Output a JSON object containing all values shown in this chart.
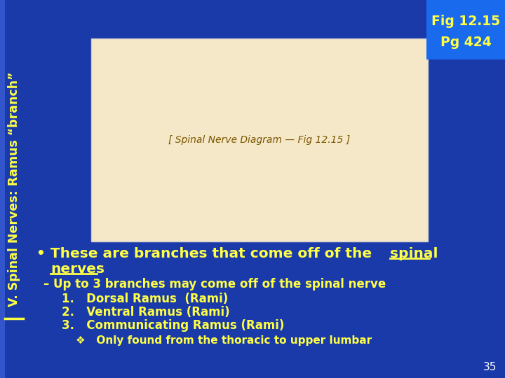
{
  "background_color": "#1a3aaa",
  "title_text": "V. Spinal Nerves: Ramus “branch”",
  "title_color": "#ffff44",
  "fig_ref_line1": "Fig 12.15",
  "fig_ref_line2": "Pg 424",
  "fig_ref_color": "#ffff44",
  "fig_ref_bg": "#1a6aee",
  "bullet_normal": "• These are branches that come off of the ",
  "bullet_bold_ul_1": "spinal",
  "bullet_bold_ul_2": "nerves",
  "bullet_color": "#ffff44",
  "sub_bullet": "– Up to 3 branches may come off of the spinal nerve",
  "sub_bullet_color": "#ffff44",
  "items": [
    "1.   Dorsal Ramus  (Rami)",
    "2.   Ventral Ramus (Rami)",
    "3.   Communicating Ramus (Rami)"
  ],
  "items_color": "#ffff44",
  "diamond_bullet": "❖   Only found from the thoracic to upper lumbar",
  "diamond_color": "#ffff44",
  "slide_number": "35",
  "slide_number_color": "#ffffff",
  "title_underline_color": "#ffff44",
  "sidebar_color": "#3355cc",
  "image_bg": "#f5e8c8",
  "image_border": "#cccccc"
}
